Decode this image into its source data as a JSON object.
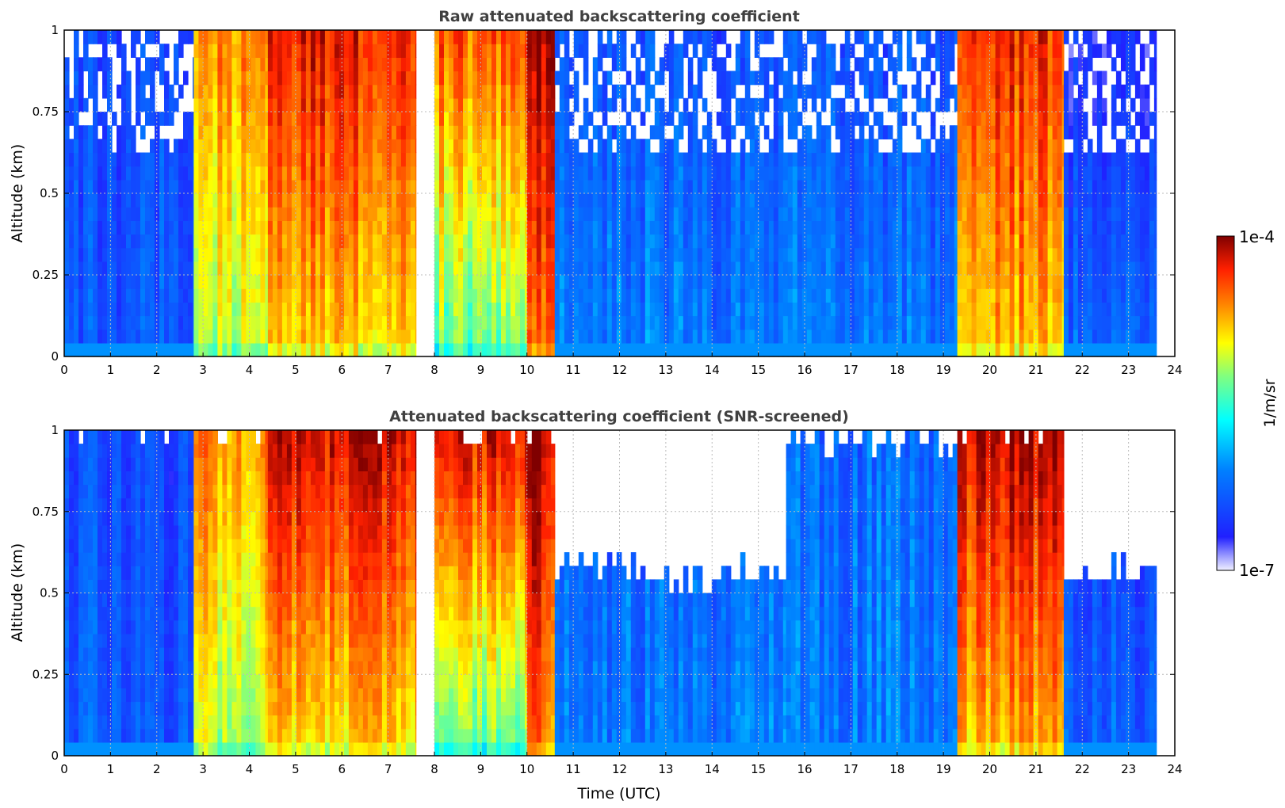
{
  "chart_data": [
    {
      "type": "heatmap",
      "title": "Raw attenuated backscattering coefficient",
      "xlabel": "",
      "ylabel": "Altitude (km)",
      "xlim": [
        0,
        24
      ],
      "ylim": [
        0,
        1
      ],
      "x_ticks": [
        "0",
        "1",
        "2",
        "3",
        "4",
        "5",
        "6",
        "7",
        "8",
        "9",
        "10",
        "11",
        "12",
        "13",
        "14",
        "15",
        "16",
        "17",
        "18",
        "19",
        "20",
        "21",
        "22",
        "23",
        "24"
      ],
      "y_ticks": [
        "0",
        "0.25",
        "0.5",
        "0.75",
        "1"
      ],
      "grid": "dotted",
      "data_end_hour": 23.6,
      "segments": [
        {
          "start": 0.0,
          "end": 2.8,
          "level": 0.22,
          "top_level": 0.18,
          "noisy_top": true
        },
        {
          "start": 2.8,
          "end": 4.4,
          "level": 0.62,
          "top_level": 0.8,
          "noisy_top": false
        },
        {
          "start": 4.4,
          "end": 7.6,
          "level": 0.72,
          "top_level": 0.92,
          "noisy_top": false
        },
        {
          "start": 7.6,
          "end": 8.0,
          "level": 0.0,
          "top_level": 0.0,
          "noisy_top": false
        },
        {
          "start": 8.0,
          "end": 10.0,
          "level": 0.55,
          "top_level": 0.85,
          "noisy_top": false
        },
        {
          "start": 10.0,
          "end": 10.6,
          "level": 0.8,
          "top_level": 0.95,
          "noisy_top": false
        },
        {
          "start": 10.6,
          "end": 19.3,
          "level": 0.28,
          "top_level": 0.2,
          "noisy_top": true
        },
        {
          "start": 19.3,
          "end": 21.6,
          "level": 0.74,
          "top_level": 0.9,
          "noisy_top": false
        },
        {
          "start": 21.6,
          "end": 23.6,
          "level": 0.24,
          "top_level": 0.1,
          "noisy_top": true
        }
      ]
    },
    {
      "type": "heatmap",
      "title": "Attenuated backscattering coefficient (SNR-screened)",
      "xlabel": "Time (UTC)",
      "ylabel": "Altitude (km)",
      "xlim": [
        0,
        24
      ],
      "ylim": [
        0,
        1
      ],
      "x_ticks": [
        "0",
        "1",
        "2",
        "3",
        "4",
        "5",
        "6",
        "7",
        "8",
        "9",
        "10",
        "11",
        "12",
        "13",
        "14",
        "15",
        "16",
        "17",
        "18",
        "19",
        "20",
        "21",
        "22",
        "23",
        "24"
      ],
      "y_ticks": [
        "0",
        "0.25",
        "0.5",
        "0.75",
        "1"
      ],
      "grid": "dotted",
      "data_end_hour": 23.6,
      "segments": [
        {
          "start": 0.0,
          "end": 2.8,
          "level": 0.22,
          "top_level": 0.18,
          "screen_above_km": 1.0
        },
        {
          "start": 2.8,
          "end": 4.4,
          "level": 0.62,
          "top_level": 0.8,
          "screen_above_km": 1.0
        },
        {
          "start": 4.4,
          "end": 7.6,
          "level": 0.72,
          "top_level": 0.96,
          "screen_above_km": 1.0
        },
        {
          "start": 7.6,
          "end": 8.0,
          "level": 0.0,
          "top_level": 0.0,
          "screen_above_km": 0.0
        },
        {
          "start": 8.0,
          "end": 10.0,
          "level": 0.55,
          "top_level": 0.95,
          "screen_above_km": 1.0
        },
        {
          "start": 10.0,
          "end": 10.6,
          "level": 0.8,
          "top_level": 0.97,
          "screen_above_km": 1.0
        },
        {
          "start": 10.6,
          "end": 15.6,
          "level": 0.28,
          "top_level": 0.22,
          "screen_above_km": 0.55
        },
        {
          "start": 15.6,
          "end": 19.3,
          "level": 0.28,
          "top_level": 0.25,
          "screen_above_km": 0.95
        },
        {
          "start": 19.3,
          "end": 21.6,
          "level": 0.74,
          "top_level": 0.96,
          "screen_above_km": 1.0
        },
        {
          "start": 21.6,
          "end": 23.6,
          "level": 0.24,
          "top_level": 0.15,
          "screen_above_km": 0.55
        }
      ]
    }
  ],
  "colorbar": {
    "label": "1/m/sr",
    "max_label": "1e-4",
    "min_label": "1e-7",
    "colormap": "jet"
  }
}
